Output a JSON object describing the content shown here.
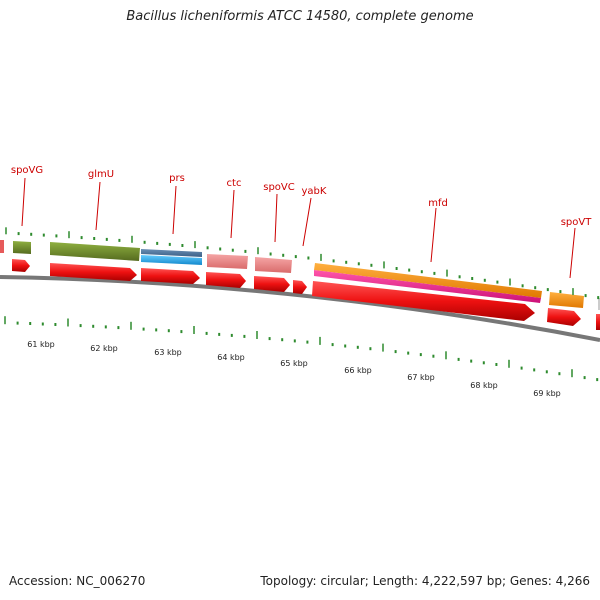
{
  "title": "Bacillus licheniformis ATCC 14580, complete genome",
  "footer": {
    "accession": "Accession: NC_006270",
    "summary": "Topology: circular; Length: 4,222,597 bp; Genes: 4,266"
  },
  "gene_labels": [
    "spoVG",
    "glmU",
    "prs",
    "ctc",
    "spoVC",
    "yabK",
    "mfd",
    "spoVT"
  ],
  "kbp_labels": [
    "61 kbp",
    "62 kbp",
    "63 kbp",
    "64 kbp",
    "65 kbp",
    "66 kbp",
    "67 kbp",
    "68 kbp",
    "69 kbp"
  ],
  "colors": {
    "backbone": "#777777",
    "tick": "#2e8b2e",
    "label": "#cc0000",
    "cds_arrow": "#ee1111",
    "glmU_feature": "#6b8e23",
    "prs_feature": "#1ea7e6",
    "ctc_feature": "#ee8888",
    "mfd_feature": "#ff8c00",
    "mfd_inner": "#e8338c"
  }
}
